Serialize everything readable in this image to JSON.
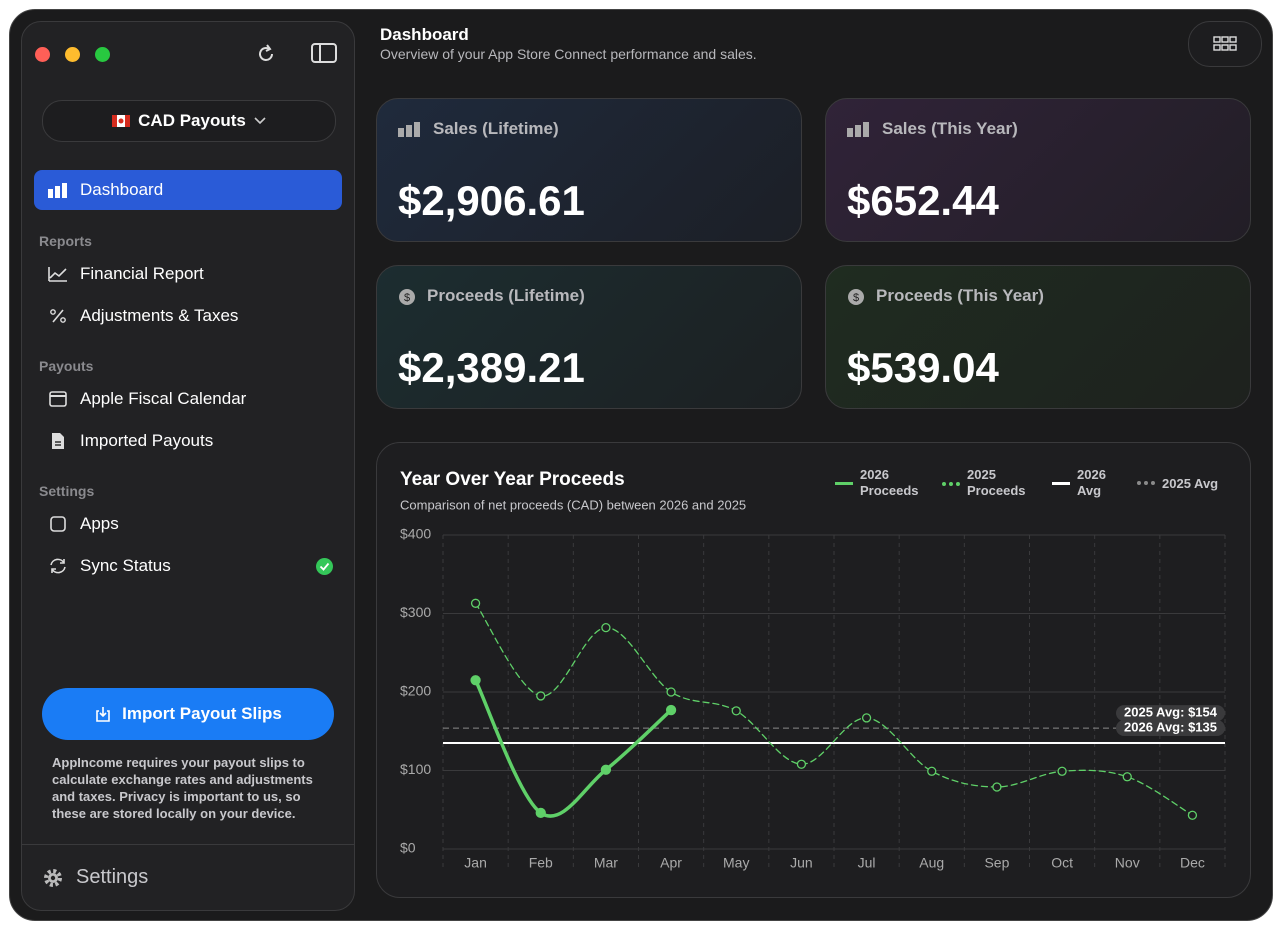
{
  "sidebar": {
    "selector": "CAD Payouts",
    "active_item": "Dashboard",
    "sections": [
      {
        "title": "Reports",
        "items": [
          "Financial Report",
          "Adjustments & Taxes"
        ]
      },
      {
        "title": "Payouts",
        "items": [
          "Apple Fiscal Calendar",
          "Imported Payouts"
        ]
      },
      {
        "title": "Settings",
        "items": [
          "Apps",
          "Sync Status"
        ]
      }
    ],
    "import_button": "Import Payout Slips",
    "note": "AppIncome requires your payout slips to calculate exchange rates and adjustments and taxes. Privacy is important to us, so these are stored locally on your device.",
    "settings": "Settings"
  },
  "header": {
    "title": "Dashboard",
    "subtitle": "Overview of your App Store Connect performance and sales."
  },
  "cards": [
    {
      "label": "Sales (Lifetime)",
      "value": "$2,906.61"
    },
    {
      "label": "Sales (This Year)",
      "value": "$652.44"
    },
    {
      "label": "Proceeds (Lifetime)",
      "value": "$2,389.21"
    },
    {
      "label": "Proceeds (This Year)",
      "value": "$539.04"
    }
  ],
  "chart_data": {
    "type": "line",
    "title": "Year Over Year Proceeds",
    "subtitle": "Comparison of net proceeds (CAD) between 2026 and 2025",
    "categories": [
      "Jan",
      "Feb",
      "Mar",
      "Apr",
      "May",
      "Jun",
      "Jul",
      "Aug",
      "Sep",
      "Oct",
      "Nov",
      "Dec"
    ],
    "series": [
      {
        "name": "2026 Proceeds",
        "color": "#5fd068",
        "style": "solid",
        "values": [
          215,
          46,
          101,
          177,
          null,
          null,
          null,
          null,
          null,
          null,
          null,
          null
        ]
      },
      {
        "name": "2025 Proceeds",
        "color": "#5fd068",
        "style": "dashed",
        "values": [
          313,
          195,
          282,
          200,
          176,
          108,
          167,
          99,
          79,
          99,
          92,
          43
        ]
      }
    ],
    "reference_lines": [
      {
        "name": "2026 Avg",
        "color": "#ffffff",
        "style": "solid",
        "value": 135,
        "label": "2026 Avg: $135"
      },
      {
        "name": "2025 Avg",
        "color": "#8a8a8a",
        "style": "dashed",
        "value": 154,
        "label": "2025 Avg: $154"
      }
    ],
    "ylim": [
      0,
      400
    ],
    "yticks": [
      {
        "value": 0,
        "label": "$0"
      },
      {
        "value": 100,
        "label": "$100"
      },
      {
        "value": 200,
        "label": "$200"
      },
      {
        "value": 300,
        "label": "$300"
      },
      {
        "value": 400,
        "label": "$400"
      }
    ],
    "grid": true,
    "legend": "top-right"
  }
}
